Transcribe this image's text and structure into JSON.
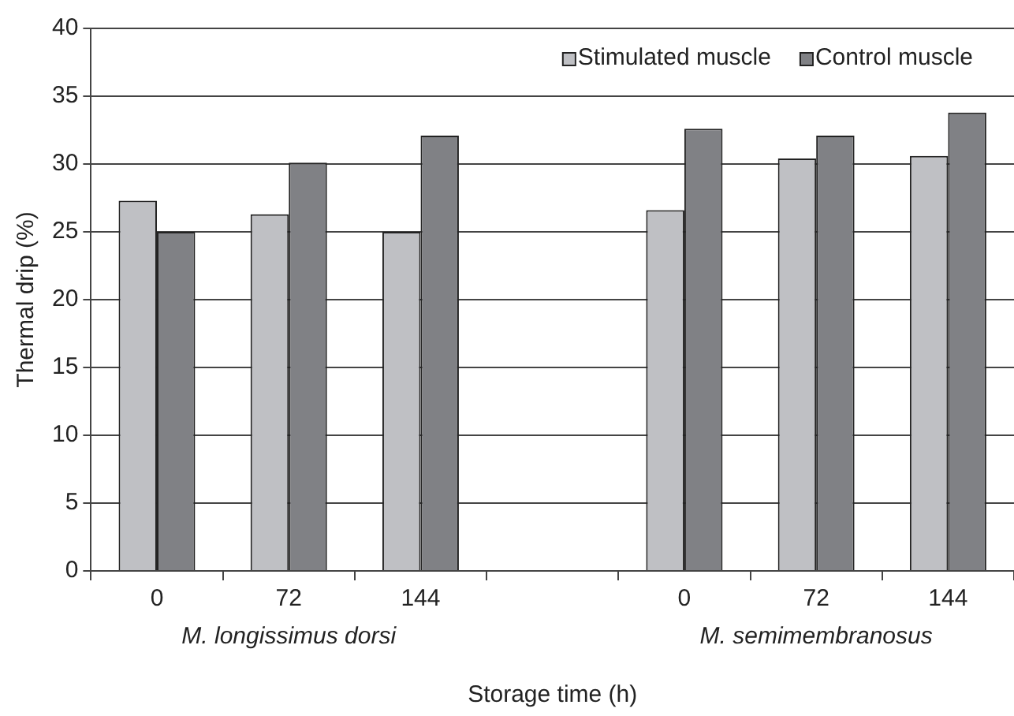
{
  "chart_data": {
    "type": "bar",
    "xlabel": "Storage time (h)",
    "ylabel": "Thermal drip (%)",
    "categories": [
      "0",
      "72",
      "144",
      null,
      "0",
      "72",
      "144"
    ],
    "series": [
      {
        "name": "Stimulated muscle",
        "color": "#bfc0c4",
        "values": [
          27.3,
          26.3,
          25.0,
          null,
          26.6,
          30.4,
          30.6
        ]
      },
      {
        "name": "Control muscle",
        "color": "#808185",
        "values": [
          25.0,
          30.1,
          32.1,
          null,
          32.6,
          32.1,
          33.8
        ]
      }
    ],
    "annotations": [
      "M. longissimus dorsi",
      "M. semimembranosus"
    ],
    "ylim": [
      0,
      40
    ],
    "yticks": [
      0,
      5,
      10,
      15,
      20,
      25,
      30,
      35,
      40
    ],
    "grid": "y",
    "legend": "top right"
  }
}
